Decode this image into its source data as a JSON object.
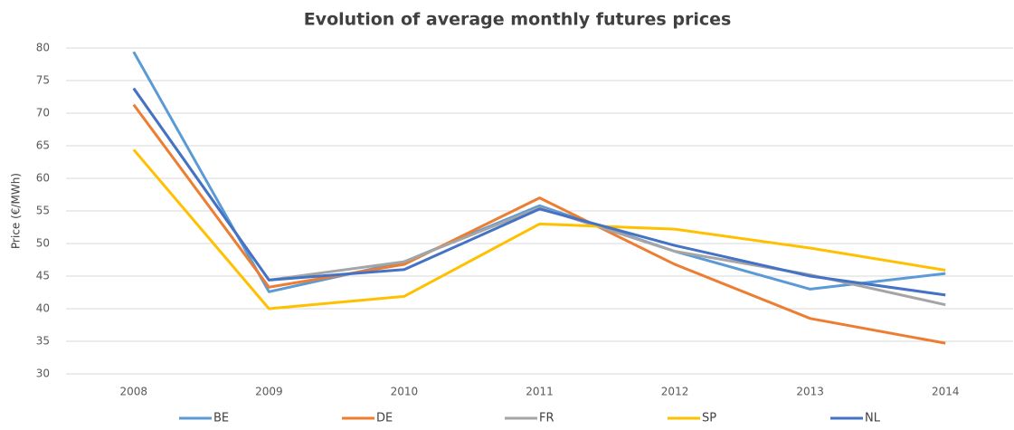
{
  "chart_data": {
    "type": "line",
    "title": "Evolution of average monthly futures prices",
    "y_label": "Price (€/MWh)",
    "categories": [
      "2008",
      "2009",
      "2010",
      "2011",
      "2012",
      "2013",
      "2014"
    ],
    "series": [
      {
        "name": "BE",
        "color": "#5b9bd5",
        "values": [
          79.4,
          42.6,
          47.2,
          55.8,
          48.8,
          43.0,
          45.4
        ]
      },
      {
        "name": "DE",
        "color": "#ed7d31",
        "values": [
          71.3,
          43.3,
          46.8,
          57.0,
          46.8,
          38.5,
          34.7
        ]
      },
      {
        "name": "FR",
        "color": "#a5a5a5",
        "values": [
          73.8,
          44.4,
          47.2,
          55.5,
          48.8,
          45.2,
          40.6
        ]
      },
      {
        "name": "SP",
        "color": "#ffc000",
        "values": [
          64.4,
          40.0,
          41.9,
          53.0,
          52.2,
          49.3,
          45.9
        ]
      },
      {
        "name": "NL",
        "color": "#4472c4",
        "values": [
          73.8,
          44.4,
          46.0,
          55.3,
          49.7,
          45.0,
          42.1
        ]
      }
    ],
    "ylim": [
      30,
      80
    ],
    "yticks": [
      30,
      35,
      40,
      45,
      50,
      55,
      60,
      65,
      70,
      75,
      80
    ],
    "grid": true,
    "legend": "bottom"
  }
}
